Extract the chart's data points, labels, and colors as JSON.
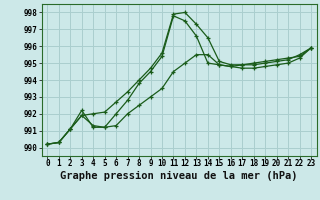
{
  "title": "Graphe pression niveau de la mer (hPa)",
  "background_color": "#cce8e8",
  "grid_color": "#aacece",
  "line_color": "#1a5c1a",
  "ylim": [
    989.5,
    998.5
  ],
  "yticks": [
    990,
    991,
    992,
    993,
    994,
    995,
    996,
    997,
    998
  ],
  "series1": [
    990.2,
    990.3,
    991.1,
    992.2,
    991.2,
    991.2,
    992.0,
    992.8,
    993.8,
    994.5,
    995.4,
    997.8,
    997.5,
    996.6,
    995.0,
    994.9,
    994.8,
    994.9,
    994.9,
    995.0,
    995.1,
    995.2,
    995.5,
    995.9
  ],
  "series2": [
    990.2,
    990.3,
    991.1,
    991.9,
    992.0,
    992.1,
    992.7,
    993.3,
    994.0,
    994.7,
    995.6,
    997.9,
    998.0,
    997.3,
    996.5,
    995.1,
    994.9,
    994.9,
    995.0,
    995.1,
    995.2,
    995.3,
    995.4,
    995.9
  ],
  "series3": [
    990.2,
    990.3,
    991.1,
    991.9,
    991.3,
    991.2,
    991.3,
    992.0,
    992.5,
    993.0,
    993.5,
    994.5,
    995.0,
    995.5,
    995.5,
    994.9,
    994.8,
    994.7,
    994.7,
    994.8,
    994.9,
    995.0,
    995.3,
    995.9
  ],
  "ylabel_fontsize": 5.5,
  "xlabel_fontsize": 7.5,
  "tick_fontsize": 5.5,
  "title_fontsize": 7.5
}
